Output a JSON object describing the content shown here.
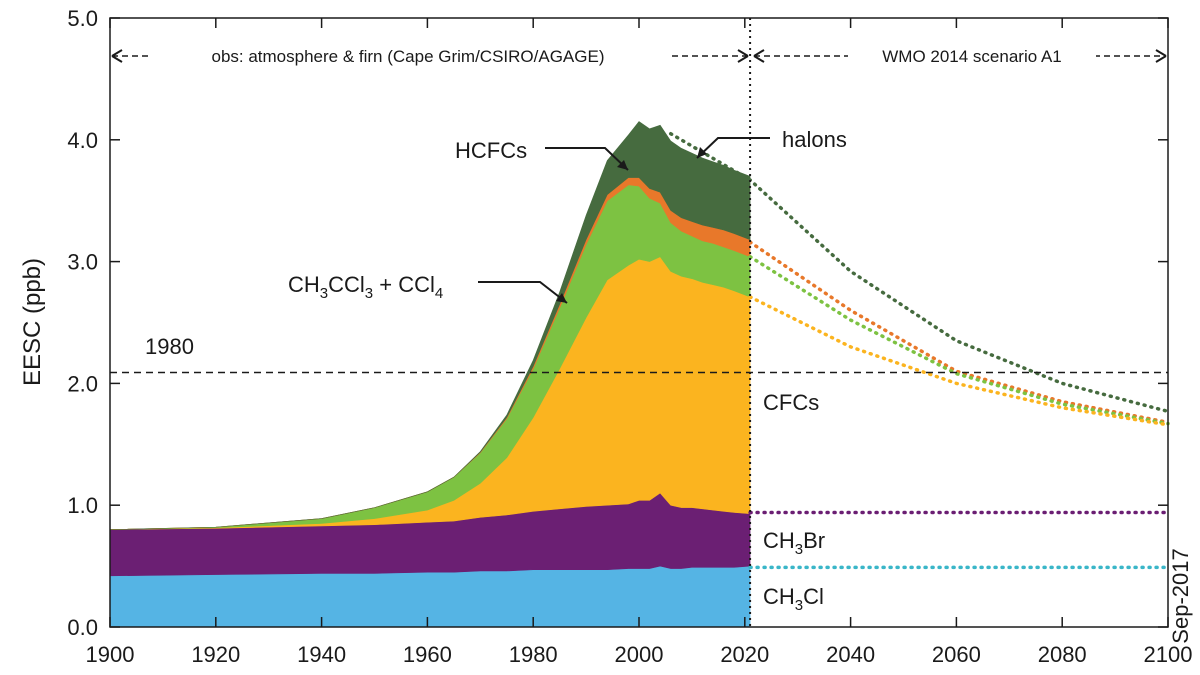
{
  "chart_data": {
    "type": "area",
    "stacked": true,
    "ylabel": "EESC (ppb)",
    "xlim": [
      1900,
      2100
    ],
    "ylim": [
      0,
      5
    ],
    "x_ticks": [
      1900,
      1920,
      1940,
      1960,
      1980,
      2000,
      2020,
      2040,
      2060,
      2080,
      2100
    ],
    "y_ticks": [
      "0.0",
      "1.0",
      "2.0",
      "3.0",
      "4.0",
      "5.0"
    ],
    "observed_end_year": 2021,
    "reference_1980": {
      "label": "1980",
      "value": 2.09
    },
    "spans": {
      "observed": "obs: atmosphere & firn (Cape Grim/CSIRO/AGAGE)",
      "scenario": "WMO 2014 scenario A1"
    },
    "date_stamp": "Sep-2017",
    "colors": {
      "CH3Cl": "#55b4e4",
      "CH3Br": "#6b1f73",
      "CFCs": "#fbb41f",
      "CH3CCl3_CCl4": "#7dc242",
      "HCFCs": "#e8782a",
      "halons": "#466b3f"
    },
    "years": [
      1900,
      1920,
      1940,
      1950,
      1960,
      1965,
      1970,
      1975,
      1980,
      1985,
      1990,
      1994,
      1998,
      2000,
      2002,
      2004,
      2006,
      2008,
      2010,
      2012,
      2014,
      2016,
      2018,
      2021
    ],
    "series": [
      {
        "key": "CH3Cl",
        "name": "CH₃Cl",
        "values": [
          0.42,
          0.43,
          0.44,
          0.44,
          0.45,
          0.45,
          0.46,
          0.46,
          0.47,
          0.47,
          0.47,
          0.47,
          0.48,
          0.48,
          0.48,
          0.5,
          0.48,
          0.48,
          0.49,
          0.49,
          0.49,
          0.49,
          0.49,
          0.5
        ]
      },
      {
        "key": "CH3Br",
        "name": "CH₃Br",
        "values": [
          0.38,
          0.38,
          0.39,
          0.4,
          0.41,
          0.42,
          0.44,
          0.46,
          0.48,
          0.5,
          0.52,
          0.53,
          0.53,
          0.56,
          0.56,
          0.6,
          0.52,
          0.5,
          0.49,
          0.48,
          0.47,
          0.46,
          0.45,
          0.43
        ]
      },
      {
        "key": "CFCs",
        "name": "CFCs",
        "values": [
          0.0,
          0.005,
          0.02,
          0.05,
          0.1,
          0.17,
          0.28,
          0.47,
          0.77,
          1.15,
          1.55,
          1.85,
          1.96,
          1.98,
          1.96,
          1.94,
          1.92,
          1.9,
          1.88,
          1.86,
          1.85,
          1.84,
          1.82,
          1.78
        ]
      },
      {
        "key": "CH3CCl3_CCl4",
        "name": "CH₃CCl₃ + CCl₄",
        "values": [
          0.0,
          0.005,
          0.04,
          0.09,
          0.15,
          0.19,
          0.25,
          0.32,
          0.4,
          0.5,
          0.6,
          0.65,
          0.66,
          0.6,
          0.52,
          0.44,
          0.4,
          0.37,
          0.35,
          0.34,
          0.34,
          0.33,
          0.33,
          0.33
        ]
      },
      {
        "key": "HCFCs",
        "name": "HCFCs",
        "values": [
          0.0,
          0.0,
          0.0,
          0.0,
          0.0,
          0.0,
          0.005,
          0.01,
          0.02,
          0.03,
          0.04,
          0.05,
          0.06,
          0.07,
          0.08,
          0.09,
          0.1,
          0.11,
          0.12,
          0.13,
          0.13,
          0.14,
          0.14,
          0.14
        ]
      },
      {
        "key": "halons",
        "name": "halons",
        "values": [
          0.0,
          0.0,
          0.0,
          0.0,
          0.0,
          0.0,
          0.005,
          0.02,
          0.05,
          0.1,
          0.2,
          0.28,
          0.35,
          0.46,
          0.49,
          0.55,
          0.57,
          0.57,
          0.56,
          0.55,
          0.54,
          0.53,
          0.52,
          0.52
        ]
      }
    ],
    "projections": [
      {
        "key": "total",
        "color": "#466b3f",
        "x": [
          2006,
          2021,
          2040,
          2060,
          2080,
          2100
        ],
        "y": [
          4.05,
          3.67,
          2.92,
          2.35,
          2.0,
          1.77
        ]
      },
      {
        "key": "HCFCs_top",
        "color": "#e8782a",
        "x": [
          2021,
          2040,
          2060,
          2080,
          2100
        ],
        "y": [
          3.16,
          2.6,
          2.1,
          1.85,
          1.68
        ]
      },
      {
        "key": "CH3CCl3_top",
        "color": "#7dc242",
        "x": [
          2021,
          2040,
          2060,
          2080,
          2100
        ],
        "y": [
          3.04,
          2.52,
          2.08,
          1.83,
          1.67
        ]
      },
      {
        "key": "CFCs_top",
        "color": "#fbb41f",
        "x": [
          2021,
          2040,
          2060,
          2080,
          2100
        ],
        "y": [
          2.71,
          2.3,
          2.0,
          1.8,
          1.66
        ]
      },
      {
        "key": "CH3Br_top",
        "color": "#6b1f73",
        "x": [
          2021,
          2100
        ],
        "y": [
          0.94,
          0.94
        ]
      },
      {
        "key": "CH3Cl_top",
        "color": "#3ab6c8",
        "x": [
          2021,
          2100
        ],
        "y": [
          0.49,
          0.49
        ]
      }
    ],
    "labels": {
      "hcfcs": "HCFCs",
      "halons": "halons",
      "ccl4_prefix": "CH",
      "ccl4_sub1": "3",
      "ccl4_mid": "CCl",
      "ccl4_sub2": "3",
      "ccl4_plus": " + CCl",
      "ccl4_sub3": "4",
      "cfcs": "CFCs",
      "ch3br_prefix": "CH",
      "ch3br_sub": "3",
      "ch3br_suffix": "Br",
      "ch3cl_prefix": "CH",
      "ch3cl_sub": "3",
      "ch3cl_suffix": "Cl"
    }
  }
}
